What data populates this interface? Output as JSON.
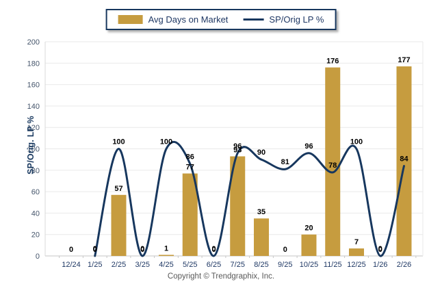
{
  "legend": {
    "items": [
      {
        "label": "Avg Days on Market",
        "type": "bar",
        "color": "#C69C3F"
      },
      {
        "label": "SP/Orig LP %",
        "type": "line",
        "color": "#17375E"
      }
    ]
  },
  "y_axis": {
    "title": "SP/Orig. LP %",
    "min": 0,
    "max": 200,
    "step": 20,
    "tick_labels": [
      "0",
      "20",
      "40",
      "60",
      "80",
      "100",
      "120",
      "140",
      "160",
      "180",
      "200"
    ]
  },
  "x_axis": {
    "tick_labels": [
      "12/24",
      "1/25",
      "2/25",
      "3/25",
      "4/25",
      "5/25",
      "6/25",
      "7/25",
      "8/25",
      "9/25",
      "10/25",
      "11/25",
      "12/25",
      "1/26",
      "2/26"
    ]
  },
  "footer": {
    "copyright": "Copyright © Trendgraphix, Inc."
  },
  "colors": {
    "bar": "#C69C3F",
    "line": "#17375E",
    "grid": "#E9E9E9",
    "baseline": "#C6C6C6",
    "axis": "#D9D9D9",
    "y_tick_text": "#44546A",
    "x_tick_text": "#1F3864",
    "data_label": "#000000"
  },
  "chart_data": {
    "type": "bar",
    "subtype": "combo-bar-line",
    "title": "",
    "xlabel": "",
    "ylabel": "SP/Orig. LP %",
    "ylim": [
      0,
      200
    ],
    "ystep": 20,
    "grid": true,
    "legend_position": "top-center",
    "data_labels": true,
    "categories": [
      "12/24",
      "1/25",
      "2/25",
      "3/25",
      "4/25",
      "5/25",
      "6/25",
      "7/25",
      "8/25",
      "9/25",
      "10/25",
      "11/25",
      "12/25",
      "1/26",
      "2/26"
    ],
    "series": [
      {
        "name": "Avg Days on Market",
        "type": "bar",
        "color": "#C69C3F",
        "values": [
          0,
          0,
          57,
          0,
          1,
          77,
          0,
          93,
          35,
          0,
          20,
          176,
          7,
          0,
          177
        ]
      },
      {
        "name": "SP/Orig LP %",
        "type": "line",
        "color": "#17375E",
        "values": [
          null,
          0,
          100,
          0,
          100,
          86,
          0,
          96,
          90,
          81,
          96,
          78,
          100,
          0,
          84
        ]
      }
    ]
  }
}
